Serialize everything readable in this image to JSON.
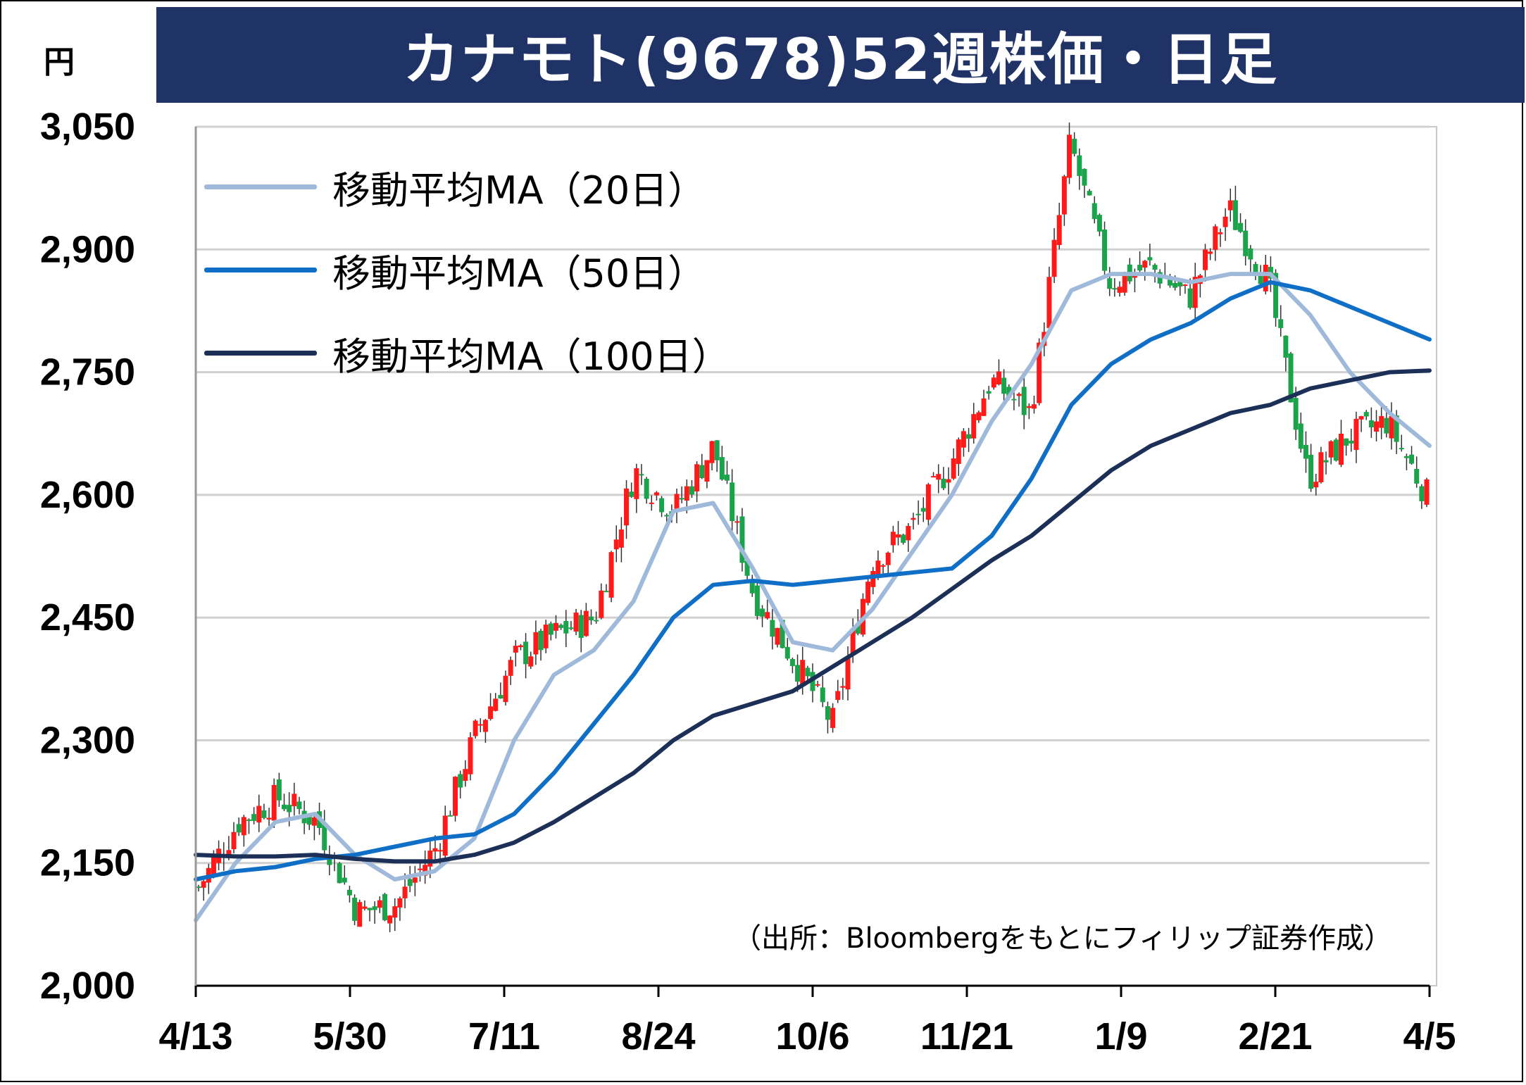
{
  "title": "カナモト(9678)52週株価・日足",
  "unit": "円",
  "source": "（出所：Bloombergをもとにフィリップ証券作成）",
  "colors": {
    "title_bg": "#1f3366",
    "up": "#ff1a1a",
    "down": "#1aa34a",
    "ma20": "#9fb9da",
    "ma50": "#0f6fc6",
    "ma100": "#1c3057",
    "grid": "#d0d0d0"
  },
  "legend": [
    {
      "label": "移動平均MA（20日）",
      "color": "#9fb9da"
    },
    {
      "label": "移動平均MA（50日）",
      "color": "#0f6fc6"
    },
    {
      "label": "移動平均MA（100日）",
      "color": "#1c3057"
    }
  ],
  "chart_data": {
    "type": "line",
    "title": "カナモト(9678)52週株価・日足",
    "ylabel": "円",
    "ylim": [
      2000,
      3050
    ],
    "yticks": [
      2000,
      2150,
      2300,
      2450,
      2600,
      2750,
      2900,
      3050
    ],
    "ytick_labels": [
      "2,000",
      "2,150",
      "2,300",
      "2,450",
      "2,600",
      "2,750",
      "2,900",
      "3,050"
    ],
    "xtick_labels": [
      "4/13",
      "5/30",
      "7/11",
      "8/24",
      "10/6",
      "11/21",
      "1/9",
      "2/21",
      "4/5"
    ],
    "grid": true,
    "legend_position": "top-left",
    "price_anchors": {
      "x": [
        "4/13",
        "4/25",
        "5/10",
        "5/30",
        "6/8",
        "6/20",
        "7/1",
        "7/11",
        "7/25",
        "8/5",
        "8/24",
        "9/5",
        "9/20",
        "9/28",
        "10/6",
        "10/17",
        "10/27",
        "11/7",
        "11/21",
        "12/5",
        "12/12",
        "12/20",
        "1/9",
        "1/20",
        "2/1",
        "2/10",
        "2/21",
        "3/1",
        "3/8",
        "3/15",
        "3/25",
        "4/5"
      ],
      "close": [
        2120,
        2200,
        2230,
        2200,
        2090,
        2100,
        2170,
        2310,
        2400,
        2430,
        2450,
        2630,
        2580,
        2660,
        2480,
        2400,
        2320,
        2520,
        2560,
        2640,
        2740,
        2700,
        3030,
        2860,
        2880,
        2840,
        2950,
        2860,
        2620,
        2670,
        2690,
        2600
      ]
    },
    "series": [
      {
        "name": "移動平均MA（20日）",
        "x": [
          "4/13",
          "4/25",
          "5/10",
          "5/30",
          "6/8",
          "6/20",
          "7/1",
          "7/11",
          "7/25",
          "8/5",
          "8/24",
          "9/5",
          "9/20",
          "9/28",
          "10/6",
          "10/17",
          "10/27",
          "11/7",
          "11/21",
          "12/5",
          "12/12",
          "12/20",
          "1/9",
          "1/20",
          "2/1",
          "2/10",
          "2/21",
          "3/1",
          "3/8",
          "3/15",
          "3/25",
          "4/5"
        ],
        "values": [
          2080,
          2150,
          2200,
          2210,
          2160,
          2130,
          2140,
          2180,
          2300,
          2380,
          2410,
          2470,
          2580,
          2590,
          2510,
          2420,
          2410,
          2460,
          2530,
          2600,
          2690,
          2760,
          2850,
          2870,
          2870,
          2860,
          2870,
          2870,
          2820,
          2750,
          2700,
          2660
        ]
      },
      {
        "name": "移動平均MA（50日）",
        "x": [
          "4/13",
          "4/25",
          "5/10",
          "5/30",
          "6/8",
          "6/20",
          "7/1",
          "7/11",
          "7/25",
          "8/5",
          "8/24",
          "9/5",
          "9/20",
          "9/28",
          "10/6",
          "10/17",
          "10/27",
          "11/7",
          "11/21",
          "12/5",
          "12/12",
          "12/20",
          "1/9",
          "1/20",
          "2/1",
          "2/10",
          "2/21",
          "3/1",
          "3/8",
          "3/15",
          "3/25",
          "4/5"
        ],
        "values": [
          2130,
          2140,
          2145,
          2155,
          2160,
          2170,
          2180,
          2185,
          2210,
          2260,
          2320,
          2380,
          2450,
          2490,
          2495,
          2490,
          2495,
          2500,
          2505,
          2510,
          2550,
          2620,
          2710,
          2760,
          2790,
          2810,
          2840,
          2860,
          2850,
          2830,
          2810,
          2790
        ]
      },
      {
        "name": "移動平均MA（100日）",
        "x": [
          "4/13",
          "4/25",
          "5/10",
          "5/30",
          "6/8",
          "6/20",
          "7/1",
          "7/11",
          "7/25",
          "8/5",
          "8/24",
          "9/5",
          "9/20",
          "9/28",
          "10/6",
          "10/17",
          "10/27",
          "11/7",
          "11/21",
          "12/5",
          "12/12",
          "12/20",
          "1/9",
          "1/20",
          "2/1",
          "2/10",
          "2/21",
          "3/1",
          "3/8",
          "3/15",
          "3/25",
          "4/5"
        ],
        "values": [
          2160,
          2158,
          2158,
          2160,
          2155,
          2152,
          2152,
          2160,
          2175,
          2200,
          2230,
          2260,
          2300,
          2330,
          2345,
          2360,
          2390,
          2420,
          2450,
          2485,
          2520,
          2550,
          2590,
          2630,
          2660,
          2680,
          2700,
          2710,
          2730,
          2740,
          2750,
          2752
        ]
      }
    ]
  }
}
